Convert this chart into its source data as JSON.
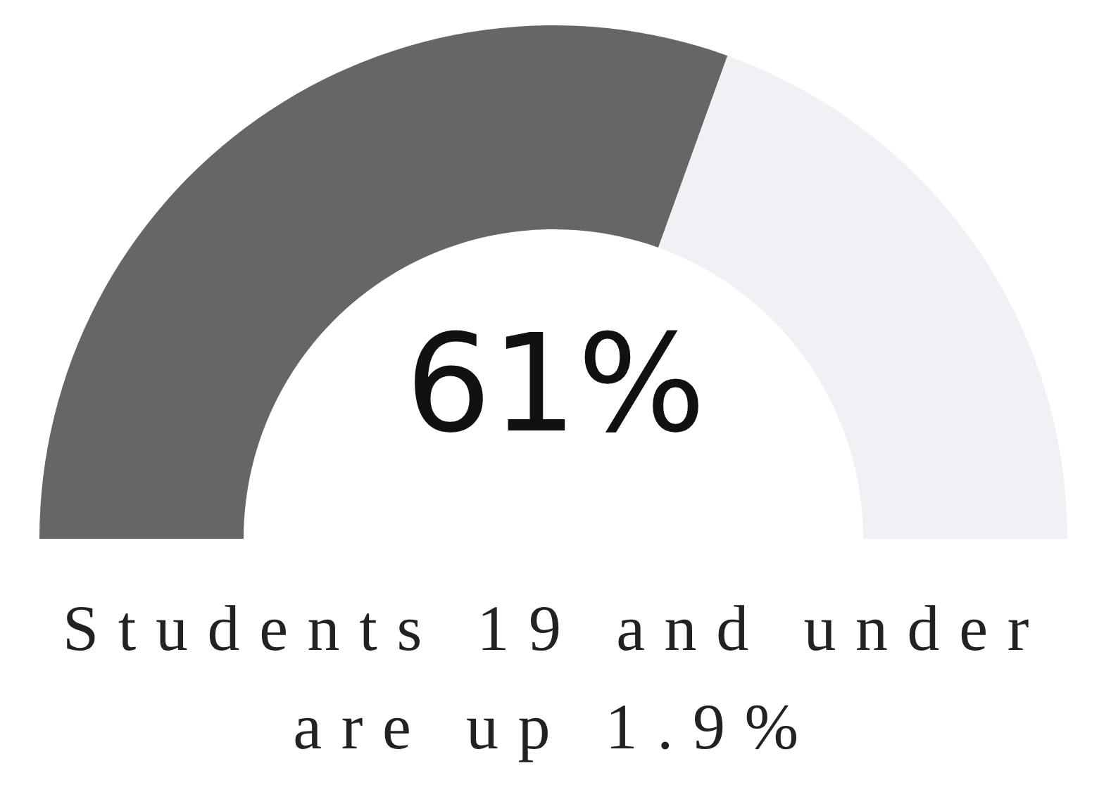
{
  "chart_data": {
    "type": "donut",
    "categories": [
      null,
      null
    ],
    "values": [
      61,
      39
    ],
    "colors": [
      "#666666",
      "#f0f1f5"
    ],
    "value_labels": [
      "61%",
      null
    ],
    "annotations": [
      "Students 19 and under are up 1.9%"
    ]
  }
}
